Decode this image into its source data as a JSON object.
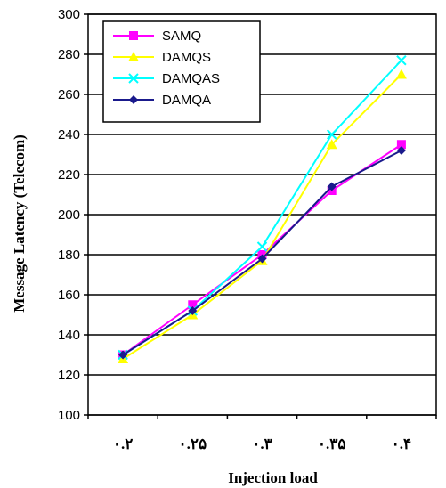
{
  "chart_data": {
    "type": "line",
    "xlabel": "Injection load",
    "ylabel": "Message Latency (Telecom)",
    "categories": [
      "۰.۲",
      "۰.۲۵",
      "۰.۳",
      "۰.۳۵",
      "۰.۴"
    ],
    "ylim": [
      100,
      300
    ],
    "yticks": [
      100,
      120,
      140,
      160,
      180,
      200,
      220,
      240,
      260,
      280,
      300
    ],
    "grid": "horizontal",
    "legend_position": "top-left",
    "series": [
      {
        "name": "SAMQ",
        "color": "#ff00ff",
        "marker": "square",
        "values": [
          130,
          155,
          180,
          212,
          235
        ]
      },
      {
        "name": "DAMQS",
        "color": "#ffff00",
        "marker": "triangle",
        "values": [
          128,
          150,
          177,
          235,
          270
        ]
      },
      {
        "name": "DAMQAS",
        "color": "#00ffff",
        "marker": "x",
        "values": [
          130,
          152,
          184,
          240,
          277
        ]
      },
      {
        "name": "DAMQA",
        "color": "#1a1a8c",
        "marker": "diamond",
        "values": [
          130,
          152,
          178,
          214,
          232
        ]
      }
    ]
  }
}
